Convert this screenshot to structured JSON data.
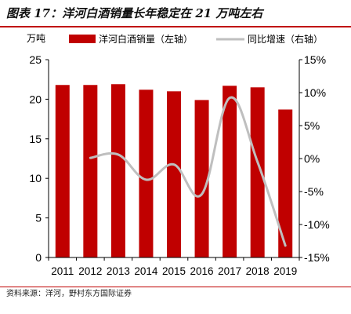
{
  "title": "图表 17：洋河白酒销量长年稳定在 21 万吨左右",
  "source": "资料来源：洋河，野村东方国际证券",
  "colors": {
    "bar": "#c00000",
    "line": "#bfbfbf",
    "rule": "#c00000"
  },
  "chart_data": {
    "type": "bar",
    "title": "",
    "categories": [
      "2011",
      "2012",
      "2013",
      "2014",
      "2015",
      "2016",
      "2017",
      "2018",
      "2019"
    ],
    "y_left_label": "万吨",
    "y_left_range": [
      0,
      25
    ],
    "y_left_ticks": [
      "0",
      "5",
      "10",
      "15",
      "20",
      "25"
    ],
    "y_right_range": [
      -15,
      15
    ],
    "y_right_ticks": [
      "-15%",
      "-10%",
      "-5%",
      "0%",
      "5%",
      "10%",
      "15%"
    ],
    "legend_position": "top",
    "grid": false,
    "series": [
      {
        "name": "洋河白酒销量（左轴）",
        "type": "bar",
        "axis": "left",
        "values": [
          21.8,
          21.8,
          21.9,
          21.2,
          21.0,
          19.9,
          21.7,
          21.5,
          18.7
        ]
      },
      {
        "name": "同比增速（右轴）",
        "type": "line",
        "axis": "right",
        "values": [
          null,
          0.1,
          0.6,
          -3.2,
          -0.9,
          -5.4,
          9.2,
          -0.5,
          -13.2
        ]
      }
    ]
  }
}
